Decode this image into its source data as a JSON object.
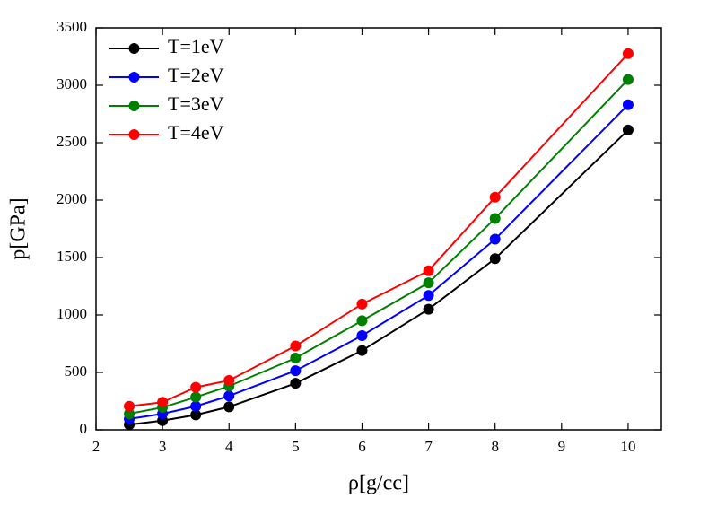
{
  "chart_data": {
    "type": "line",
    "x_label": "ρ[g/cc]",
    "y_label": "p[GPa]",
    "x": [
      2.5,
      3,
      3.5,
      4,
      5,
      6,
      7,
      8,
      10
    ],
    "series": [
      {
        "name": "T=1eV",
        "color": "#000000",
        "values": [
          45,
          80,
          130,
          200,
          405,
          690,
          1050,
          1490,
          2610
        ]
      },
      {
        "name": "T=2eV",
        "color": "#0000ff",
        "values": [
          95,
          140,
          205,
          295,
          515,
          820,
          1170,
          1660,
          2830
        ]
      },
      {
        "name": "T=3eV",
        "color": "#008000",
        "values": [
          140,
          195,
          285,
          380,
          625,
          950,
          1280,
          1840,
          3050
        ]
      },
      {
        "name": "T=4eV",
        "color": "#ff0000",
        "values": [
          205,
          240,
          370,
          430,
          730,
          1095,
          1385,
          2025,
          3275
        ]
      }
    ],
    "xlim": [
      2,
      10.5
    ],
    "xticks": [
      2,
      3,
      4,
      5,
      6,
      7,
      8,
      9,
      10
    ],
    "ylim": [
      0,
      3500
    ],
    "yticks": [
      0,
      500,
      1000,
      1500,
      2000,
      2500,
      3000,
      3500
    ],
    "legend": "upper left"
  }
}
